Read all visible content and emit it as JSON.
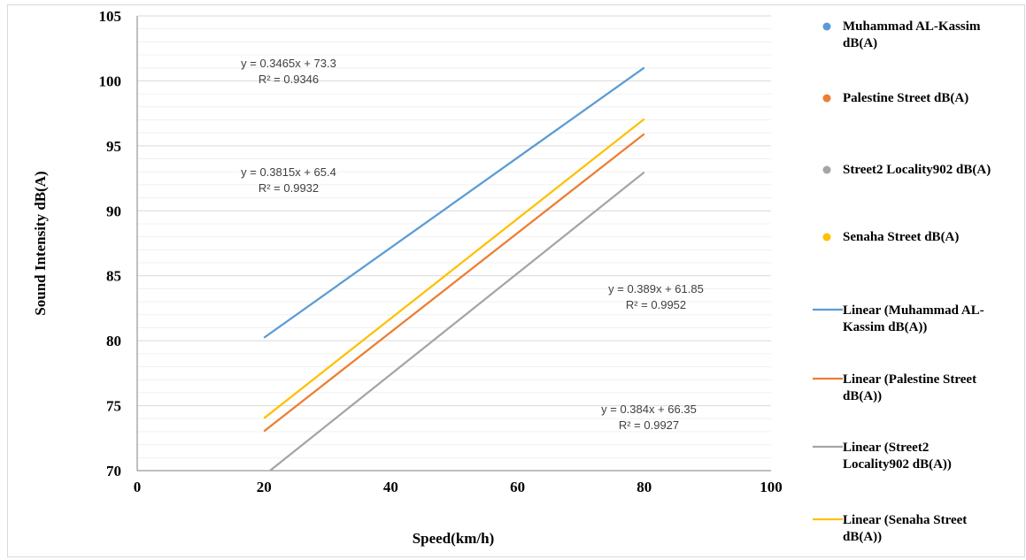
{
  "chart_data": {
    "type": "scatter",
    "xlabel": "Speed(km/h)",
    "ylabel": "Sound Intensity dB(A)",
    "xlim": [
      0,
      100
    ],
    "ylim": [
      70,
      105
    ],
    "x_ticks": [
      "0",
      "20",
      "40",
      "60",
      "80",
      "100"
    ],
    "y_ticks": [
      "70",
      "75",
      "80",
      "85",
      "90",
      "95",
      "100",
      "105"
    ],
    "grid": "horizontal major and minor",
    "legend_position": "right",
    "series": [
      {
        "name": "Muhammad AL-Kassim dB(A)",
        "color": "#5b9bd5",
        "trendline": "Linear (Muhammad AL-Kassim dB(A))",
        "slope": 0.3465,
        "intercept": 73.3,
        "x_range": [
          20,
          80
        ],
        "equation": "y = 0.3465x + 73.3",
        "r2": "R² = 0.9346"
      },
      {
        "name": "Palestine Street dB(A)",
        "color": "#ed7d31",
        "trendline": "Linear (Palestine Street dB(A))",
        "slope": 0.3815,
        "intercept": 65.4,
        "x_range": [
          20,
          80
        ],
        "equation": "y = 0.3815x + 65.4",
        "r2": "R² = 0.9932"
      },
      {
        "name": "Street2 Locality902 dB(A)",
        "color": "#a5a5a5",
        "trendline": "Linear (Street2 Locality902 dB(A))",
        "slope": 0.389,
        "intercept": 61.85,
        "x_range": [
          20,
          80
        ],
        "equation": "y = 0.389x + 61.85",
        "r2": "R² = 0.9952"
      },
      {
        "name": "Senaha Street dB(A)",
        "color": "#ffc000",
        "trendline": "Linear (Senaha Street dB(A))",
        "slope": 0.384,
        "intercept": 66.35,
        "x_range": [
          20,
          80
        ],
        "equation": "y = 0.384x + 66.35",
        "r2": "R² = 0.9927"
      }
    ]
  }
}
